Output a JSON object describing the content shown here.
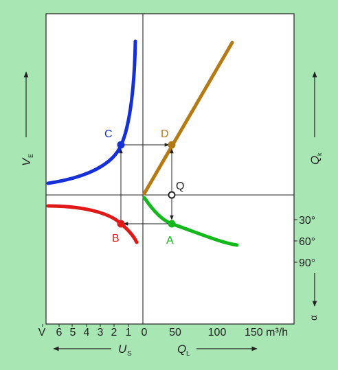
{
  "colors": {
    "background": "#a8e6b4",
    "plot_bg": "#ffffff",
    "ink": "#222222",
    "blue": "#1530d6",
    "red": "#e01818",
    "green": "#12b81c",
    "brown": "#b57a14"
  },
  "points": {
    "A": "A",
    "B": "B",
    "C": "C",
    "D": "D",
    "Q": "Q"
  },
  "left_axis": {
    "label": "V",
    "subscript": "E"
  },
  "right_axis": {
    "top_label": "Q",
    "top_subscript": "k",
    "angle_symbol": "α",
    "angle_ticks": [
      "30°",
      "60°",
      "90°"
    ]
  },
  "bottom_axis": {
    "left_ticks": [
      "V",
      "6",
      "5",
      "4",
      "3",
      "2",
      "1",
      "0"
    ],
    "right_ticks": [
      "50",
      "100",
      "150 m³/h"
    ],
    "us_label": "U",
    "us_subscript": "S",
    "ql_label": "Q",
    "ql_subscript": "L"
  }
}
